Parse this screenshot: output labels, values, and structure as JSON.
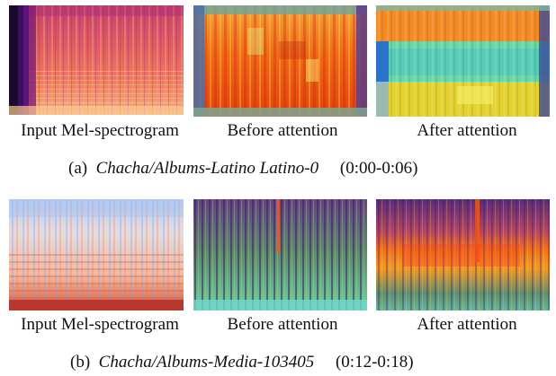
{
  "rows": [
    {
      "panels": [
        {
          "label": "Input Mel-spectrogram"
        },
        {
          "label": "Before attention"
        },
        {
          "label": "After attention"
        }
      ],
      "caption": {
        "letter": "(a)",
        "title": "Chacha/Albums-Latino Latino-0",
        "range": "(0:00-0:06)"
      }
    },
    {
      "panels": [
        {
          "label": "Input Mel-spectrogram"
        },
        {
          "label": "Before attention"
        },
        {
          "label": "After attention"
        }
      ],
      "caption": {
        "letter": "(b)",
        "title": "Chacha/Albums-Media-103405",
        "range": "(0:12-0:18)"
      }
    }
  ]
}
